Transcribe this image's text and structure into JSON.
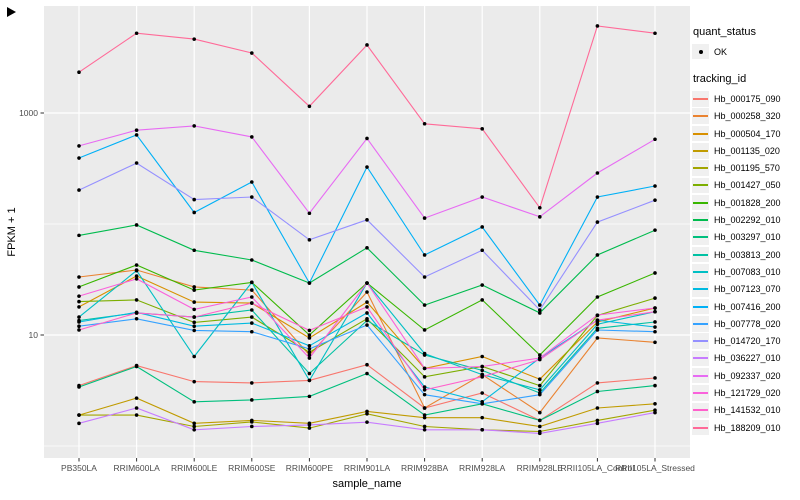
{
  "figure": {
    "y_axis": {
      "title": "FPKM + 1",
      "scale": "log10",
      "ticks": [
        {
          "value": 1000,
          "label": "1000"
        },
        {
          "value": 10,
          "label": "10"
        }
      ],
      "minor_gridline_values": [
        100,
        1
      ]
    },
    "x_axis": {
      "title": "sample_name",
      "categories": [
        "PB350LA",
        "RRIM600LA",
        "RRIM600LE",
        "RRIM600SE",
        "RRIM600PE",
        "RRIM901LA",
        "RRIM928BA",
        "RRIM928LA",
        "RRIM928LE",
        "RRII105LA_Control",
        "RRII105LA_Stressed"
      ]
    },
    "legend": {
      "quant_status": {
        "title": "quant_status",
        "items": [
          {
            "label": "OK",
            "marker": "black-point"
          }
        ]
      },
      "tracking_id": {
        "title": "tracking_id"
      }
    },
    "colors": {
      "panel_bg": "#EBEBEB",
      "gridline": "#FFFFFF",
      "legend_key_bg": "#F0F0F0",
      "tick_label_text": "#4D4D4D",
      "point_marker": "#000000"
    }
  },
  "chart_data": {
    "type": "line",
    "title": "",
    "xlabel": "sample_name",
    "ylabel": "FPKM + 1",
    "y_scale": "log10",
    "ylim": [
      0.8,
      9000
    ],
    "grid": true,
    "legend_position": "right",
    "point_marker_color": "#000000",
    "categories": [
      "PB350LA",
      "RRIM600LA",
      "RRIM600LE",
      "RRIM600SE",
      "RRIM600PE",
      "RRIM901LA",
      "RRIM928BA",
      "RRIM928LA",
      "RRIM928LE",
      "RRII105LA_Control",
      "RRII105LA_Stressed"
    ],
    "series": [
      {
        "name": "Hb_000175_090",
        "color": "#F8766D",
        "values": [
          3.5,
          5.3,
          3.8,
          3.7,
          3.9,
          5.4,
          2.2,
          3.0,
          1.7,
          3.7,
          4.1
        ]
      },
      {
        "name": "Hb_000258_320",
        "color": "#EA8331",
        "values": [
          33.3,
          38.5,
          27.1,
          25.4,
          6.6,
          24.4,
          2.2,
          4.4,
          2.0,
          9.4,
          8.6
        ]
      },
      {
        "name": "Hb_000504_170",
        "color": "#D89000",
        "values": [
          17.9,
          34.0,
          19.8,
          19.4,
          9.4,
          19.8,
          5.0,
          6.4,
          4.0,
          13.1,
          17.5
        ]
      },
      {
        "name": "Hb_001135_020",
        "color": "#C09B00",
        "values": [
          1.9,
          2.7,
          1.6,
          1.7,
          1.6,
          2.05,
          1.8,
          1.8,
          1.5,
          2.2,
          2.4
        ]
      },
      {
        "name": "Hb_001195_570",
        "color": "#A3A500",
        "values": [
          1.9,
          1.9,
          1.5,
          1.65,
          1.45,
          1.95,
          1.5,
          1.4,
          1.35,
          1.7,
          2.1
        ]
      },
      {
        "name": "Hb_001427_050",
        "color": "#7CAE00",
        "values": [
          20.0,
          20.7,
          13.0,
          14.5,
          7.0,
          14.0,
          4.2,
          5.2,
          3.5,
          15.0,
          21.5
        ]
      },
      {
        "name": "Hb_001828_200",
        "color": "#39B600",
        "values": [
          27.1,
          42.7,
          25.4,
          29.8,
          10.0,
          29.4,
          11.1,
          20.7,
          6.6,
          22.0,
          36.2
        ]
      },
      {
        "name": "Hb_002292_010",
        "color": "#00BB4E",
        "values": [
          79,
          98,
          58,
          47.4,
          29.4,
          61,
          18.6,
          28.2,
          15.8,
          52.6,
          88
        ]
      },
      {
        "name": "Hb_003297_010",
        "color": "#00BF7D",
        "values": [
          3.4,
          5.2,
          2.5,
          2.6,
          2.8,
          4.5,
          1.9,
          2.4,
          1.7,
          3.1,
          3.5
        ]
      },
      {
        "name": "Hb_003813_200",
        "color": "#00C1A3",
        "values": [
          13.5,
          15.8,
          14.5,
          16.8,
          4.5,
          13.5,
          6.6,
          4.8,
          3.0,
          11.5,
          13.1
        ]
      },
      {
        "name": "Hb_007083_010",
        "color": "#00BFC4",
        "values": [
          14.5,
          38.0,
          6.4,
          29.8,
          3.9,
          29.4,
          6.8,
          4.4,
          3.2,
          12.5,
          16.2
        ]
      },
      {
        "name": "Hb_007123_070",
        "color": "#00BAE0",
        "values": [
          13.1,
          16.0,
          12.0,
          12.8,
          8.0,
          15.8,
          3.4,
          2.5,
          6.2,
          13.6,
          11.8
        ]
      },
      {
        "name": "Hb_007416_200",
        "color": "#00B0F6",
        "values": [
          393,
          635,
          127,
          239,
          29.4,
          326,
          52.6,
          94,
          18.6,
          175,
          220
        ]
      },
      {
        "name": "Hb_007778_020",
        "color": "#35A2FF",
        "values": [
          12.0,
          14.0,
          11.0,
          10.7,
          7.5,
          12.3,
          2.9,
          2.4,
          2.9,
          11.1,
          10.7
        ]
      },
      {
        "name": "Hb_014720_170",
        "color": "#9590FF",
        "values": [
          202,
          354,
          166,
          175,
          72,
          109,
          33.3,
          58,
          16.8,
          104,
          164
        ]
      },
      {
        "name": "Hb_036227_010",
        "color": "#C77CFF",
        "values": [
          1.6,
          2.2,
          1.4,
          1.5,
          1.55,
          1.64,
          1.4,
          1.4,
          1.3,
          1.6,
          2.0
        ]
      },
      {
        "name": "Hb_092337_020",
        "color": "#E76BF3",
        "values": [
          505,
          700,
          765,
          609,
          125,
          590,
          113,
          175,
          116,
          288,
          580
        ]
      },
      {
        "name": "Hb_121729_020",
        "color": "#FA62DB",
        "values": [
          22.4,
          32.0,
          17.0,
          22.0,
          6.2,
          29.4,
          5.0,
          5.2,
          6.2,
          15.1,
          17.5
        ]
      },
      {
        "name": "Hb_141532_010",
        "color": "#FF61CC",
        "values": [
          11.1,
          15.8,
          14.5,
          19.4,
          11.0,
          17.9,
          3.2,
          4.2,
          6.0,
          13.6,
          16.2
        ]
      },
      {
        "name": "Hb_188209_010",
        "color": "#FF6A98",
        "values": [
          2330,
          5230,
          4630,
          3470,
          1150,
          4100,
          800,
          720,
          140,
          6080,
          5230
        ]
      }
    ]
  }
}
